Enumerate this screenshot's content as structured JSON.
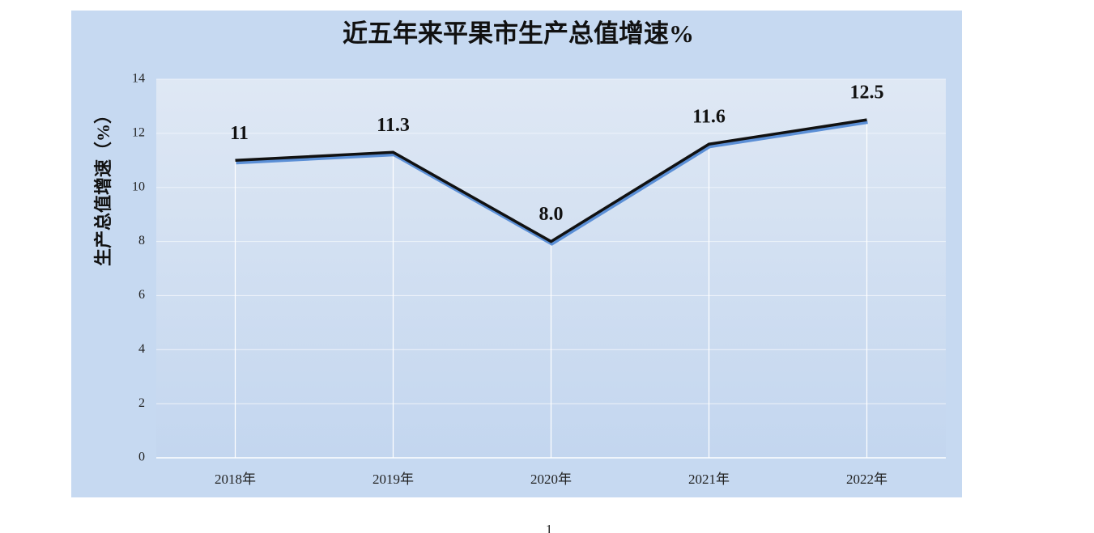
{
  "chart_data": {
    "type": "line",
    "title": "近五年来平果市生产总值增速%",
    "y_label": "生产总值增速（%）",
    "categories": [
      "2018年",
      "2019年",
      "2020年",
      "2021年",
      "2022年"
    ],
    "series": [
      {
        "color": "#111111",
        "values": [
          11,
          11.3,
          8,
          11.6,
          12.5
        ],
        "value_labels": [
          "11",
          "11.3",
          "8.0",
          "11.6",
          "12.5"
        ]
      }
    ],
    "ylim": [
      0,
      14
    ],
    "yticks": [
      0,
      2,
      4,
      6,
      8,
      10,
      12,
      14
    ],
    "grid": true
  },
  "page_number": "1"
}
